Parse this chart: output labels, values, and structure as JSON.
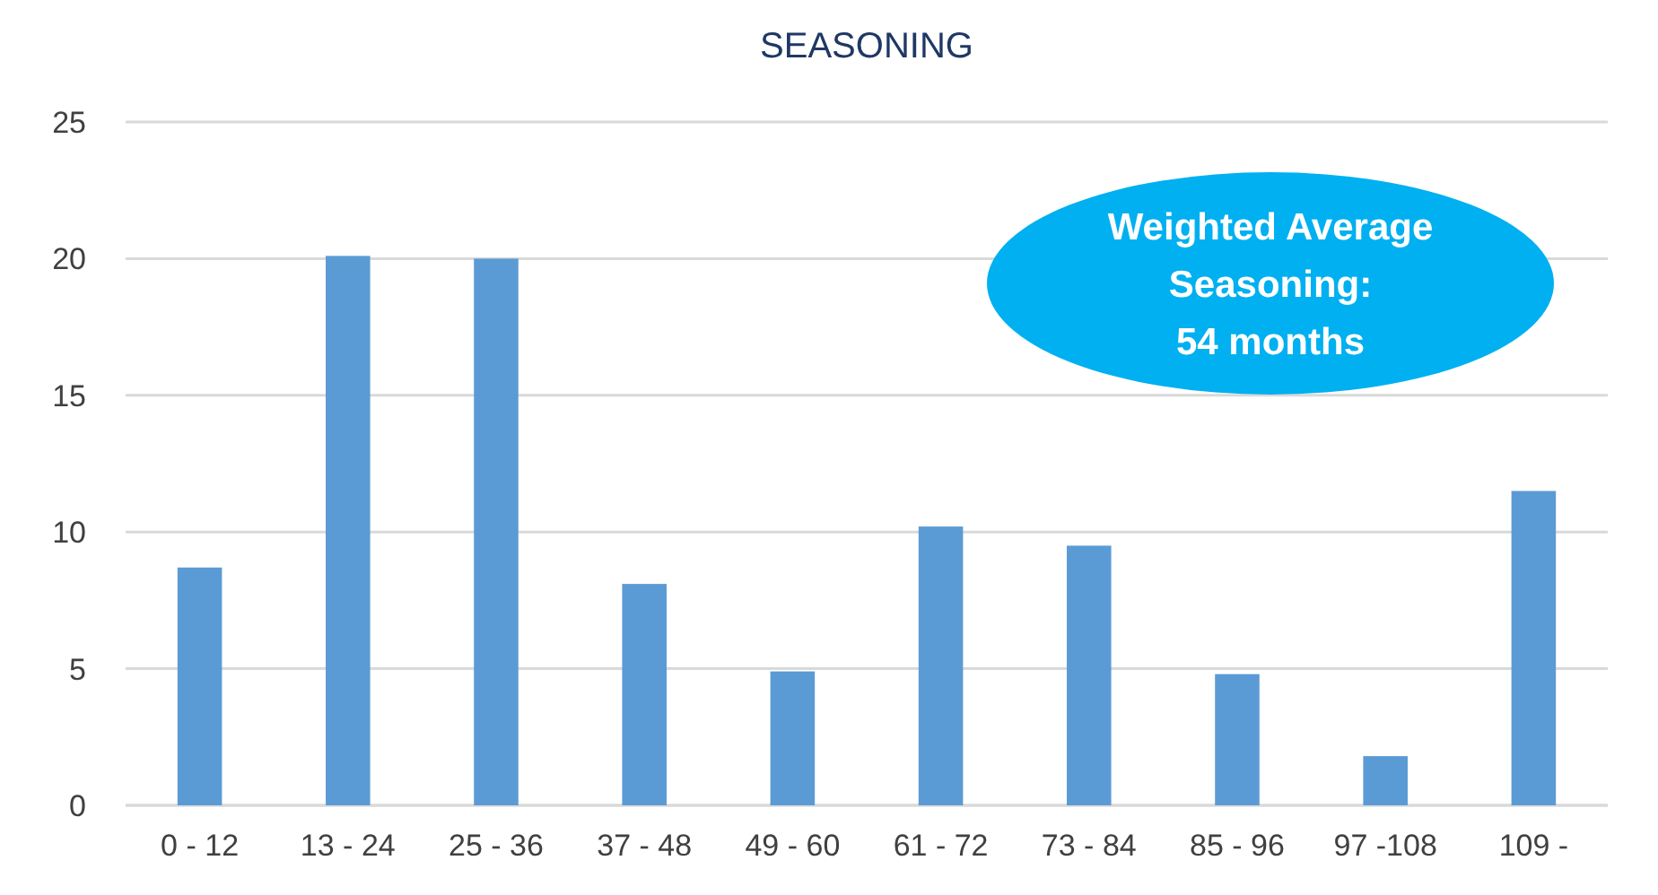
{
  "chart_data": {
    "type": "bar",
    "title": "SEASONING",
    "categories": [
      "0 - 12",
      "13 - 24",
      "25 - 36",
      "37 - 48",
      "49 - 60",
      "61 - 72",
      "73 - 84",
      "85 - 96",
      "97 -108",
      "109 -"
    ],
    "values": [
      8.7,
      20.1,
      20.0,
      8.1,
      4.9,
      10.2,
      9.5,
      4.8,
      1.8,
      11.5
    ],
    "color": "#5b9bd5",
    "ylim": [
      0,
      25
    ],
    "yticks": [
      0,
      5,
      10,
      15,
      20,
      25
    ],
    "grid": "y",
    "annotations": [
      "Weighted Average\nSeasoning:\n54 months"
    ]
  }
}
